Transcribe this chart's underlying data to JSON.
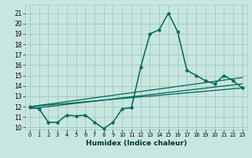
{
  "title": "",
  "xlabel": "Humidex (Indice chaleur)",
  "bg_color": "#c8e6e0",
  "grid_color": "#a0c8c0",
  "line_color": "#006858",
  "xlim": [
    -0.5,
    23.5
  ],
  "ylim": [
    9.8,
    21.8
  ],
  "yticks": [
    10,
    11,
    12,
    13,
    14,
    15,
    16,
    17,
    18,
    19,
    20,
    21
  ],
  "xticks": [
    0,
    1,
    2,
    3,
    4,
    5,
    6,
    7,
    8,
    9,
    10,
    11,
    12,
    13,
    14,
    15,
    16,
    17,
    18,
    19,
    20,
    21,
    22,
    23
  ],
  "main_x": [
    0,
    1,
    2,
    3,
    4,
    5,
    6,
    7,
    8,
    9,
    10,
    11,
    12,
    13,
    14,
    15,
    16,
    17,
    18,
    19,
    20,
    21,
    22,
    23
  ],
  "main_y": [
    12.0,
    11.8,
    10.5,
    10.5,
    11.2,
    11.1,
    11.2,
    10.5,
    9.9,
    10.5,
    11.8,
    11.9,
    15.8,
    19.0,
    19.4,
    21.0,
    19.2,
    15.5,
    15.0,
    14.5,
    14.2,
    15.0,
    14.5,
    13.8
  ],
  "trend_lines": [
    {
      "x": [
        0,
        23
      ],
      "y": [
        12.0,
        13.8
      ]
    },
    {
      "x": [
        0,
        23
      ],
      "y": [
        11.8,
        14.2
      ]
    },
    {
      "x": [
        0,
        23
      ],
      "y": [
        12.0,
        14.8
      ]
    }
  ]
}
